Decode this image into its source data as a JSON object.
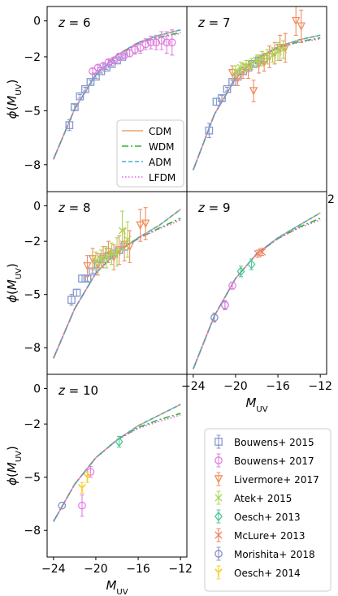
{
  "colors": {
    "CDM": "#f0a060",
    "WDM": "#33b033",
    "ADM": "#3fb0cf",
    "LFDM": "#e060e0",
    "Bouwens2015": "#8898cc",
    "Bouwens2017": "#e080e0",
    "Livermore2017": "#f09060",
    "Atek2015": "#a8d850",
    "Oesch2013": "#50c898",
    "McLure2013": "#f08060",
    "Morishita2018": "#8890c0",
    "Oesch2014": "#f8d030"
  },
  "model_legend": [
    "CDM",
    "WDM",
    "ADM",
    "LFDM"
  ],
  "data_legend": [
    "Bouwens+ 2015",
    "Bouwens+ 2017",
    "Livermore+ 2017",
    "Atek+ 2015",
    "Oesch+ 2013",
    "McLure+ 2013",
    "Morishita+ 2018",
    "Oesch+ 2014"
  ],
  "stray_tick": "2",
  "chart_data": [
    {
      "type": "scatter",
      "panel_label": "z = 6",
      "ylabel": "ϕ(M_UV)",
      "xlabel": "",
      "xlim": [
        -24.6,
        -11.4
      ],
      "ylim": [
        -9.5,
        0.8
      ],
      "xticks": [],
      "yticks": [
        0,
        -2,
        -5,
        -8
      ],
      "models": [
        {
          "name": "CDM",
          "style": "solid",
          "x": [
            -24,
            -22,
            -20,
            -18,
            -16,
            -14,
            -12
          ],
          "y": [
            -7.7,
            -4.9,
            -3.0,
            -1.9,
            -1.2,
            -0.8,
            -0.5
          ]
        },
        {
          "name": "WDM",
          "style": "dashdot",
          "x": [
            -24,
            -22,
            -20,
            -18,
            -16,
            -14,
            -12
          ],
          "y": [
            -7.7,
            -4.9,
            -3.0,
            -1.9,
            -1.25,
            -0.9,
            -0.65
          ]
        },
        {
          "name": "ADM",
          "style": "dashed",
          "x": [
            -24,
            -22,
            -20,
            -18,
            -16,
            -14,
            -12
          ],
          "y": [
            -7.7,
            -4.9,
            -3.0,
            -1.9,
            -1.2,
            -0.8,
            -0.5
          ]
        },
        {
          "name": "LFDM",
          "style": "dotted",
          "x": [
            -24,
            -22,
            -20,
            -18,
            -16,
            -14,
            -12
          ],
          "y": [
            -7.7,
            -4.9,
            -3.0,
            -1.9,
            -1.25,
            -0.95,
            -0.7
          ]
        }
      ],
      "datasets": [
        {
          "name": "Bouwens+ 2015",
          "marker": "square",
          "x": [
            -22.5,
            -22.0,
            -21.5,
            -21.0,
            -20.5,
            -20.0,
            -19.5,
            -19.0,
            -18.5,
            -18.0,
            -17.5
          ],
          "y": [
            -5.8,
            -4.8,
            -4.2,
            -3.8,
            -3.4,
            -3.1,
            -2.8,
            -2.6,
            -2.4,
            -2.2,
            -2.0
          ],
          "yerr": [
            0.3,
            0.15,
            0.1,
            0.1,
            0.1,
            0.1,
            0.1,
            0.1,
            0.1,
            0.1,
            0.1
          ]
        },
        {
          "name": "Bouwens+ 2017",
          "marker": "circle",
          "x": [
            -20.3,
            -19.8,
            -19.3,
            -18.8,
            -18.3,
            -17.8,
            -17.3,
            -16.8,
            -16.3,
            -15.8,
            -15.3,
            -14.8,
            -14.3,
            -13.8,
            -13.3,
            -12.8
          ],
          "y": [
            -2.8,
            -2.6,
            -2.5,
            -2.3,
            -2.2,
            -2.0,
            -1.9,
            -1.8,
            -1.6,
            -1.5,
            -1.3,
            -1.2,
            -1.2,
            -1.1,
            -1.2,
            -1.2
          ],
          "yerr": [
            0.15,
            0.15,
            0.15,
            0.15,
            0.15,
            0.2,
            0.2,
            0.2,
            0.25,
            0.3,
            0.3,
            0.35,
            0.4,
            0.5,
            0.6,
            0.7
          ]
        }
      ]
    },
    {
      "type": "scatter",
      "panel_label": "z = 7",
      "ylabel": "",
      "xlabel": "",
      "xlim": [
        -24.6,
        -11.4
      ],
      "ylim": [
        -9.5,
        0.8
      ],
      "xticks": [],
      "yticks": [],
      "models": [
        {
          "name": "CDM",
          "style": "solid",
          "x": [
            -24,
            -22,
            -20,
            -18,
            -16,
            -14,
            -12
          ],
          "y": [
            -8.3,
            -5.2,
            -3.2,
            -2.1,
            -1.45,
            -1.05,
            -0.8
          ]
        },
        {
          "name": "WDM",
          "style": "dashdot",
          "x": [
            -24,
            -22,
            -20,
            -18,
            -16,
            -14,
            -12
          ],
          "y": [
            -8.3,
            -5.2,
            -3.2,
            -2.1,
            -1.5,
            -1.15,
            -0.95
          ]
        },
        {
          "name": "ADM",
          "style": "dashed",
          "x": [
            -24,
            -22,
            -20,
            -18,
            -16,
            -14,
            -12
          ],
          "y": [
            -8.3,
            -5.2,
            -3.2,
            -2.1,
            -1.45,
            -1.05,
            -0.8
          ]
        },
        {
          "name": "LFDM",
          "style": "dotted",
          "x": [
            -24,
            -22,
            -20,
            -18,
            -16,
            -14,
            -12
          ],
          "y": [
            -8.3,
            -5.2,
            -3.2,
            -2.1,
            -1.5,
            -1.2,
            -1.0
          ]
        }
      ],
      "datasets": [
        {
          "name": "Bouwens+ 2015",
          "marker": "square",
          "x": [
            -22.5,
            -21.8,
            -21.3,
            -20.8,
            -20.3,
            -19.8,
            -19.3,
            -18.8,
            -18.3,
            -17.8,
            -17.3
          ],
          "y": [
            -6.1,
            -4.5,
            -4.3,
            -3.8,
            -3.4,
            -3.1,
            -2.8,
            -2.6,
            -2.4,
            -2.2,
            -2.1
          ],
          "yerr": [
            0.4,
            0.2,
            0.15,
            0.1,
            0.1,
            0.1,
            0.1,
            0.1,
            0.1,
            0.1,
            0.15
          ]
        },
        {
          "name": "Livermore+ 2017",
          "marker": "triangle-down",
          "x": [
            -20.3,
            -19.8,
            -19.3,
            -18.8,
            -18.3,
            -17.8,
            -17.3,
            -16.8,
            -16.3,
            -15.8,
            -15.3,
            -14.3,
            -13.8
          ],
          "y": [
            -2.9,
            -3.2,
            -2.8,
            -2.7,
            -3.9,
            -2.4,
            -2.3,
            -2.0,
            -1.8,
            -1.5,
            -1.5,
            0.0,
            -0.3
          ],
          "yerr": [
            0.4,
            0.4,
            0.4,
            0.5,
            0.6,
            0.5,
            0.5,
            0.6,
            0.6,
            0.7,
            0.8,
            0.8,
            0.9
          ]
        },
        {
          "name": "Atek+ 2015",
          "marker": "x",
          "x": [
            -20.0,
            -19.5,
            -19.0,
            -18.5,
            -18.0,
            -17.5,
            -17.0,
            -16.5,
            -16.0,
            -15.5
          ],
          "y": [
            -2.8,
            -2.6,
            -2.5,
            -2.4,
            -2.2,
            -2.1,
            -2.0,
            -1.9,
            -1.7,
            -1.6
          ],
          "yerr": [
            0.3,
            0.3,
            0.3,
            0.3,
            0.3,
            0.4,
            0.4,
            0.4,
            0.5,
            0.5
          ]
        }
      ]
    },
    {
      "type": "scatter",
      "panel_label": "z = 8",
      "ylabel": "ϕ(M_UV)",
      "xlabel": "",
      "xlim": [
        -24.6,
        -11.4
      ],
      "ylim": [
        -9.5,
        0.8
      ],
      "xticks": [],
      "yticks": [
        0,
        -2,
        -5,
        -8
      ],
      "models": [
        {
          "name": "CDM",
          "style": "solid",
          "x": [
            -24,
            -22,
            -20,
            -18,
            -16,
            -14,
            -12
          ],
          "y": [
            -8.6,
            -5.8,
            -3.8,
            -2.6,
            -1.8,
            -1.1,
            -0.2
          ]
        },
        {
          "name": "WDM",
          "style": "dashdot",
          "x": [
            -24,
            -22,
            -20,
            -18,
            -16,
            -14,
            -12
          ],
          "y": [
            -8.6,
            -5.8,
            -3.8,
            -2.6,
            -1.85,
            -1.25,
            -0.7
          ]
        },
        {
          "name": "ADM",
          "style": "dashed",
          "x": [
            -24,
            -22,
            -20,
            -18,
            -16,
            -14,
            -12
          ],
          "y": [
            -8.6,
            -5.8,
            -3.8,
            -2.6,
            -1.8,
            -1.1,
            -0.2
          ]
        },
        {
          "name": "LFDM",
          "style": "dotted",
          "x": [
            -24,
            -22,
            -20,
            -18,
            -16,
            -14,
            -12
          ],
          "y": [
            -8.6,
            -5.8,
            -3.8,
            -2.6,
            -1.85,
            -1.3,
            -0.8
          ]
        }
      ],
      "datasets": [
        {
          "name": "Bouwens+ 2015",
          "marker": "square",
          "x": [
            -22.3,
            -21.8,
            -21.3,
            -20.8,
            -20.3,
            -19.8,
            -19.3,
            -18.8,
            -18.3,
            -17.8,
            -17.3
          ],
          "y": [
            -5.3,
            -4.9,
            -4.1,
            -4.1,
            -3.7,
            -3.3,
            -3.0,
            -2.8,
            -2.7,
            -2.5,
            -2.3
          ],
          "yerr": [
            0.3,
            0.2,
            0.2,
            0.15,
            0.1,
            0.1,
            0.1,
            0.1,
            0.1,
            0.1,
            0.2
          ]
        },
        {
          "name": "Livermore+ 2017",
          "marker": "triangle-down",
          "x": [
            -20.8,
            -20.3,
            -19.8,
            -19.3,
            -18.8,
            -18.3,
            -17.8,
            -17.3,
            -16.8,
            -15.8,
            -15.3
          ],
          "y": [
            -3.4,
            -3.0,
            -3.3,
            -2.9,
            -2.6,
            -2.9,
            -2.5,
            -2.2,
            -2.3,
            -1.1,
            -1.0
          ],
          "yerr": [
            0.6,
            0.6,
            0.6,
            0.6,
            0.6,
            0.7,
            0.8,
            0.9,
            0.9,
            0.9,
            0.9
          ]
        },
        {
          "name": "Atek+ 2015",
          "marker": "x",
          "x": [
            -20.0,
            -19.5,
            -19.0,
            -18.5,
            -18.0,
            -17.5,
            -17.0
          ],
          "y": [
            -3.1,
            -3.0,
            -2.9,
            -2.7,
            -2.6,
            -1.4,
            -1.9
          ],
          "yerr": [
            0.5,
            0.5,
            0.6,
            0.6,
            0.8,
            1.1,
            1.0
          ]
        }
      ]
    },
    {
      "type": "scatter",
      "panel_label": "z = 9",
      "ylabel": "",
      "xlabel": "M_UV",
      "xlim": [
        -24.6,
        -11.4
      ],
      "ylim": [
        -9.5,
        0.8
      ],
      "xticks": [
        -24,
        -20,
        -16,
        -12
      ],
      "yticks": [],
      "models": [
        {
          "name": "CDM",
          "style": "solid",
          "x": [
            -24,
            -22,
            -20,
            -18,
            -16,
            -14,
            -12
          ],
          "y": [
            -9.2,
            -6.2,
            -4.1,
            -2.7,
            -1.8,
            -1.1,
            -0.4
          ]
        },
        {
          "name": "WDM",
          "style": "dashdot",
          "x": [
            -24,
            -22,
            -20,
            -18,
            -16,
            -14,
            -12
          ],
          "y": [
            -9.2,
            -6.2,
            -4.1,
            -2.7,
            -1.85,
            -1.2,
            -0.7
          ]
        },
        {
          "name": "ADM",
          "style": "dashed",
          "x": [
            -24,
            -22,
            -20,
            -18,
            -16,
            -14,
            -12
          ],
          "y": [
            -9.2,
            -6.2,
            -4.1,
            -2.7,
            -1.8,
            -1.1,
            -0.4
          ]
        },
        {
          "name": "LFDM",
          "style": "dotted",
          "x": [
            -24,
            -22,
            -20,
            -18,
            -16,
            -14,
            -12
          ],
          "y": [
            -9.2,
            -6.2,
            -4.1,
            -2.7,
            -1.85,
            -1.25,
            -0.8
          ]
        }
      ],
      "datasets": [
        {
          "name": "Morishita+ 2018",
          "marker": "circle",
          "x": [
            -22.0,
            -21.0
          ],
          "y": [
            -6.3,
            -5.6
          ],
          "yerr": [
            0.25,
            0.25
          ]
        },
        {
          "name": "Bouwens+ 2017",
          "marker": "circle",
          "x": [
            -21.0,
            -20.3
          ],
          "y": [
            -5.6,
            -4.5
          ],
          "yerr": [
            0.2,
            0.2
          ]
        },
        {
          "name": "Oesch+ 2013",
          "marker": "diamond",
          "x": [
            -19.5,
            -18.5
          ],
          "y": [
            -3.7,
            -3.3
          ],
          "yerr": [
            0.3,
            0.3
          ]
        },
        {
          "name": "McLure+ 2013",
          "marker": "x",
          "x": [
            -17.9,
            -17.5
          ],
          "y": [
            -2.7,
            -2.6
          ],
          "yerr": [
            0.2,
            0.2
          ]
        }
      ]
    },
    {
      "type": "scatter",
      "panel_label": "z = 10",
      "ylabel": "ϕ(M_UV)",
      "xlabel": "M_UV",
      "xlim": [
        -24.6,
        -11.4
      ],
      "ylim": [
        -9.5,
        0.8
      ],
      "xticks": [
        -24,
        -20,
        -16,
        -12
      ],
      "yticks": [
        0,
        -2,
        -5,
        -8
      ],
      "models": [
        {
          "name": "CDM",
          "style": "solid",
          "x": [
            -24,
            -22,
            -20,
            -18,
            -16,
            -14,
            -12
          ],
          "y": [
            -7.5,
            -5.4,
            -3.9,
            -2.9,
            -2.1,
            -1.5,
            -0.9
          ]
        },
        {
          "name": "WDM",
          "style": "dashdot",
          "x": [
            -24,
            -22,
            -20,
            -18,
            -16,
            -14,
            -12
          ],
          "y": [
            -7.5,
            -5.4,
            -3.9,
            -2.9,
            -2.2,
            -1.75,
            -1.4
          ]
        },
        {
          "name": "ADM",
          "style": "dashed",
          "x": [
            -24,
            -22,
            -20,
            -18,
            -16,
            -14,
            -12
          ],
          "y": [
            -7.5,
            -5.4,
            -3.9,
            -2.9,
            -2.1,
            -1.5,
            -0.9
          ]
        },
        {
          "name": "LFDM",
          "style": "dotted",
          "x": [
            -24,
            -22,
            -20,
            -18,
            -16,
            -14,
            -12
          ],
          "y": [
            -7.5,
            -5.4,
            -3.9,
            -2.9,
            -2.25,
            -1.85,
            -1.5
          ]
        }
      ],
      "datasets": [
        {
          "name": "Morishita+ 2018",
          "marker": "circle",
          "x": [
            -23.2
          ],
          "y": [
            -6.6
          ],
          "yerr": [
            0.0
          ]
        },
        {
          "name": "Bouwens+ 2017",
          "marker": "circle",
          "x": [
            -21.3,
            -20.5
          ],
          "y": [
            -6.6,
            -4.7
          ],
          "yerr": [
            0.6,
            0.3
          ]
        },
        {
          "name": "Oesch+ 2014",
          "marker": "y",
          "x": [
            -21.3,
            -20.8
          ],
          "y": [
            -5.6,
            -5.0
          ],
          "yerr": [
            0.3,
            0.3
          ]
        },
        {
          "name": "Oesch+ 2013",
          "marker": "diamond",
          "x": [
            -17.8
          ],
          "y": [
            -3.0
          ],
          "yerr": [
            0.3
          ]
        }
      ]
    }
  ]
}
